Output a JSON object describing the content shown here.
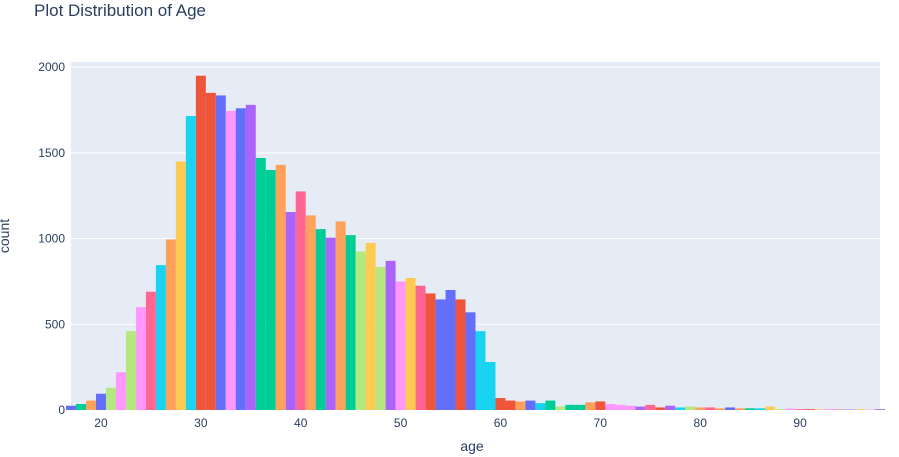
{
  "chart_data": {
    "type": "bar",
    "title": "Plot Distribution of Age",
    "xlabel": "age",
    "ylabel": "count",
    "xlim": [
      17,
      98
    ],
    "ylim": [
      0,
      2030
    ],
    "x_ticks": [
      "20",
      "30",
      "40",
      "50",
      "60",
      "70",
      "80",
      "90"
    ],
    "y_ticks": [
      "0",
      "500",
      "1000",
      "1500",
      "2000"
    ],
    "grid": true,
    "legend": "none",
    "plot_bg": "#e5ecf6",
    "palette": [
      "#636efa",
      "#EF553B",
      "#00cc96",
      "#ab63fa",
      "#FFA15A",
      "#19d3f3",
      "#FF6692",
      "#B6E880",
      "#FF97FF",
      "#FECB52"
    ],
    "ages": [
      17,
      18,
      19,
      20,
      21,
      22,
      23,
      24,
      25,
      26,
      27,
      28,
      29,
      30,
      31,
      32,
      33,
      34,
      35,
      36,
      37,
      38,
      39,
      40,
      41,
      42,
      43,
      44,
      45,
      46,
      47,
      48,
      49,
      50,
      51,
      52,
      53,
      54,
      55,
      56,
      57,
      58,
      59,
      60,
      61,
      62,
      63,
      64,
      65,
      66,
      67,
      68,
      69,
      70,
      71,
      72,
      73,
      74,
      75,
      76,
      77,
      78,
      79,
      80,
      81,
      82,
      83,
      84,
      85,
      86,
      87,
      88,
      89,
      90,
      91,
      92,
      93,
      94,
      95,
      96,
      97,
      98
    ],
    "values": [
      25,
      35,
      55,
      95,
      130,
      220,
      460,
      600,
      690,
      845,
      995,
      1450,
      1715,
      1950,
      1850,
      1835,
      1745,
      1760,
      1780,
      1470,
      1400,
      1430,
      1155,
      1275,
      1135,
      1055,
      1005,
      1100,
      1020,
      925,
      975,
      835,
      870,
      750,
      770,
      725,
      680,
      645,
      700,
      645,
      570,
      460,
      280,
      70,
      55,
      50,
      55,
      40,
      55,
      20,
      30,
      30,
      45,
      50,
      35,
      30,
      25,
      20,
      30,
      15,
      25,
      15,
      20,
      15,
      15,
      10,
      15,
      10,
      10,
      10,
      20,
      5,
      8,
      5,
      5,
      3,
      5,
      3,
      2,
      5,
      2,
      5
    ],
    "colors": [
      "#636efa",
      "#00cc96",
      "#FFA15A",
      "#636efa",
      "#B6E880",
      "#FF97FF",
      "#B6E880",
      "#FF97FF",
      "#FF6692",
      "#19d3f3",
      "#FFA15A",
      "#FECB52",
      "#19d3f3",
      "#EF553B",
      "#EF553B",
      "#636efa",
      "#FF97FF",
      "#636efa",
      "#ab63fa",
      "#00cc96",
      "#00cc96",
      "#FFA15A",
      "#ab63fa",
      "#FF6692",
      "#FFA15A",
      "#00cc96",
      "#ab63fa",
      "#FFA15A",
      "#00cc96",
      "#B6E880",
      "#FECB52",
      "#B6E880",
      "#ab63fa",
      "#FF97FF",
      "#FECB52",
      "#FF6692",
      "#EF553B",
      "#636efa",
      "#636efa",
      "#EF553B",
      "#636efa",
      "#19d3f3",
      "#19d3f3",
      "#EF553B",
      "#EF553B",
      "#FFA15A",
      "#636efa",
      "#19d3f3",
      "#00cc96",
      "#B6E880",
      "#00cc96",
      "#00cc96",
      "#FFA15A",
      "#EF553B",
      "#FF97FF",
      "#FF97FF",
      "#FF97FF",
      "#ab63fa",
      "#FF6692",
      "#EF553B",
      "#ab63fa",
      "#19d3f3",
      "#B6E880",
      "#FFA15A",
      "#FF6692",
      "#FFA15A",
      "#636efa",
      "#FFA15A",
      "#00cc96",
      "#19d3f3",
      "#FECB52",
      "#B6E880",
      "#FF97FF",
      "#FF6692",
      "#EF553B",
      "#FFA15A",
      "#FF97FF",
      "#FF6692",
      "#636efa",
      "#FECB52",
      "#FF97FF",
      "#ab63fa"
    ]
  }
}
